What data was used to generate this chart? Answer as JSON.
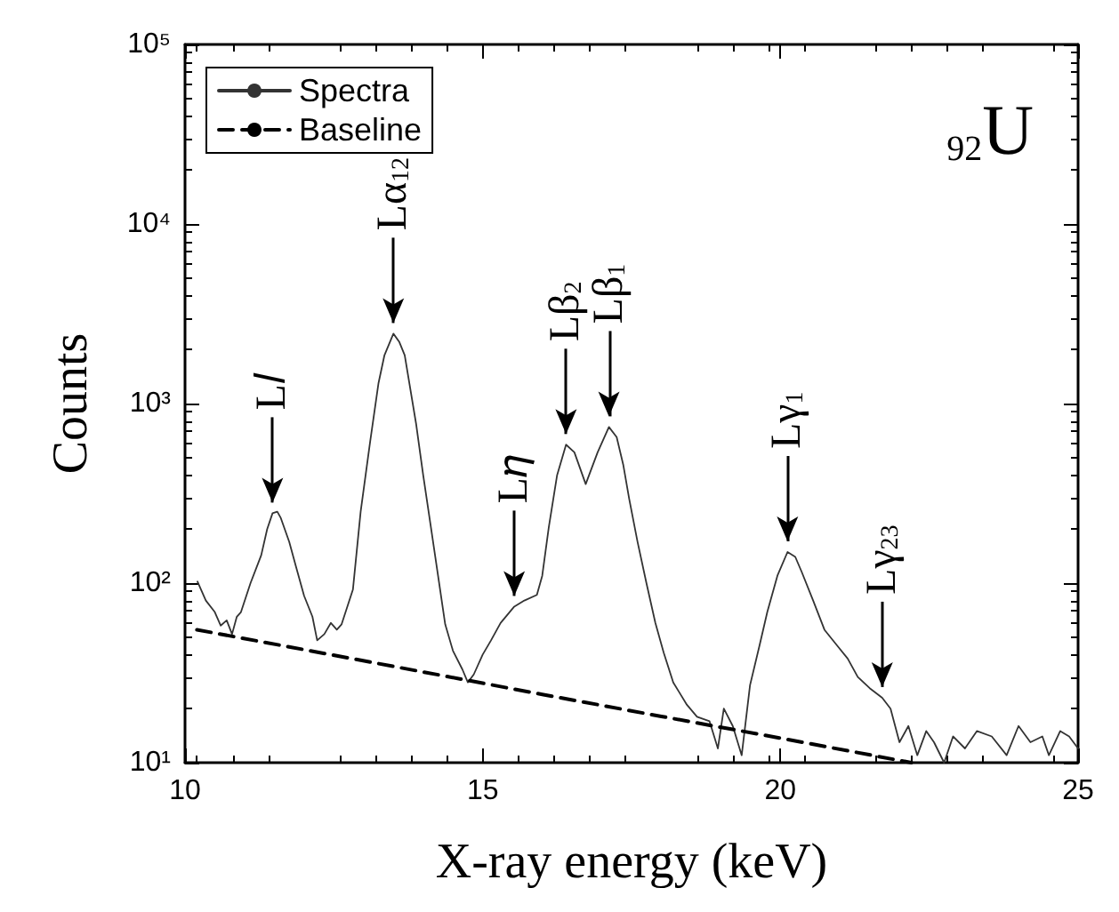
{
  "chart_data": {
    "type": "line",
    "xlabel": "X-ray energy (keV)",
    "ylabel": "Counts",
    "log": "y",
    "xlim": [
      10,
      25
    ],
    "xticks": [
      10,
      15,
      20,
      25
    ],
    "ylim": [
      10,
      100000
    ],
    "yticks": [
      {
        "value": 10,
        "label": "10¹"
      },
      {
        "value": 100,
        "label": "10²"
      },
      {
        "value": 1000,
        "label": "10³"
      },
      {
        "value": 10000,
        "label": "10⁴"
      },
      {
        "value": 100000,
        "label": "10⁵"
      }
    ],
    "legend": "top left",
    "grid": false,
    "series": [
      {
        "name": "Spectra",
        "color": "#333333",
        "line_style": "solid",
        "x": [
          10.21,
          10.35,
          10.5,
          10.6,
          10.7,
          10.79,
          10.87,
          10.94,
          11.1,
          11.28,
          11.38,
          11.47,
          11.55,
          11.61,
          11.75,
          11.86,
          12.0,
          12.14,
          12.22,
          12.34,
          12.45,
          12.55,
          12.63,
          12.82,
          12.95,
          13.11,
          13.25,
          13.35,
          13.5,
          13.6,
          13.69,
          13.88,
          14.0,
          14.13,
          14.25,
          14.37,
          14.5,
          14.66,
          14.75,
          14.85,
          15.0,
          15.14,
          15.3,
          15.53,
          15.7,
          15.91,
          16.0,
          16.11,
          16.25,
          16.4,
          16.54,
          16.73,
          16.93,
          17.12,
          17.25,
          17.36,
          17.46,
          17.6,
          17.75,
          17.9,
          18.04,
          18.2,
          18.43,
          18.6,
          18.81,
          18.95,
          19.05,
          19.2,
          19.35,
          19.49,
          19.65,
          19.78,
          19.95,
          20.12,
          20.25,
          20.36,
          20.55,
          20.74,
          20.95,
          21.13,
          21.3,
          21.5,
          21.71,
          21.85,
          22.0,
          22.15,
          22.3,
          22.45,
          22.58,
          22.75,
          22.9,
          23.1,
          23.3,
          23.55,
          23.8,
          24.0,
          24.2,
          24.4,
          24.51,
          24.7,
          24.85,
          25.0
        ],
        "values": [
          102,
          80,
          69,
          58,
          62,
          52,
          65,
          69,
          100,
          143,
          200,
          245,
          250,
          230,
          170,
          125,
          85,
          65,
          48,
          52,
          60,
          55,
          59,
          92,
          250,
          616,
          1300,
          1860,
          2450,
          2200,
          1860,
          776,
          400,
          205,
          110,
          59,
          42,
          33,
          28,
          31,
          40,
          48,
          60,
          74,
          80,
          86,
          110,
          205,
          400,
          590,
          535,
          356,
          535,
          740,
          650,
          457,
          295,
          170,
          100,
          60,
          41,
          28,
          21,
          18,
          17,
          12,
          20,
          16,
          11,
          27,
          45,
          69,
          110,
          149,
          140,
          115,
          80,
          55,
          45,
          38,
          30,
          26,
          23,
          20,
          13,
          16,
          11,
          15,
          13,
          10,
          14,
          12,
          15,
          14,
          11,
          16,
          13,
          14,
          11,
          15,
          14,
          12
        ],
        "marker": "none"
      },
      {
        "name": "Baseline",
        "color": "#000000",
        "line_style": "dashed",
        "x": [
          10.2,
          12,
          14,
          16,
          18,
          20,
          22.2
        ],
        "values": [
          55,
          42.6,
          32,
          24,
          18.1,
          13.7,
          10
        ],
        "marker": "none"
      }
    ],
    "annotations": [
      {
        "text": "L𝑙",
        "x": 11.47,
        "y": 245
      },
      {
        "text": "Lα$_{12}$",
        "x": 13.5,
        "y": 2450
      },
      {
        "text": "L𝜂",
        "x": 15.53,
        "y": 74
      },
      {
        "text": "Lβ$_{2}$",
        "x": 16.4,
        "y": 590
      },
      {
        "text": "Lβ$_{1}$",
        "x": 17.12,
        "y": 740
      },
      {
        "text": "Lγ$_{1}$",
        "x": 20.12,
        "y": 149
      },
      {
        "text": "Lγ$_{23}$",
        "x": 21.71,
        "y": 23
      },
      "$_{92}$U"
    ]
  }
}
